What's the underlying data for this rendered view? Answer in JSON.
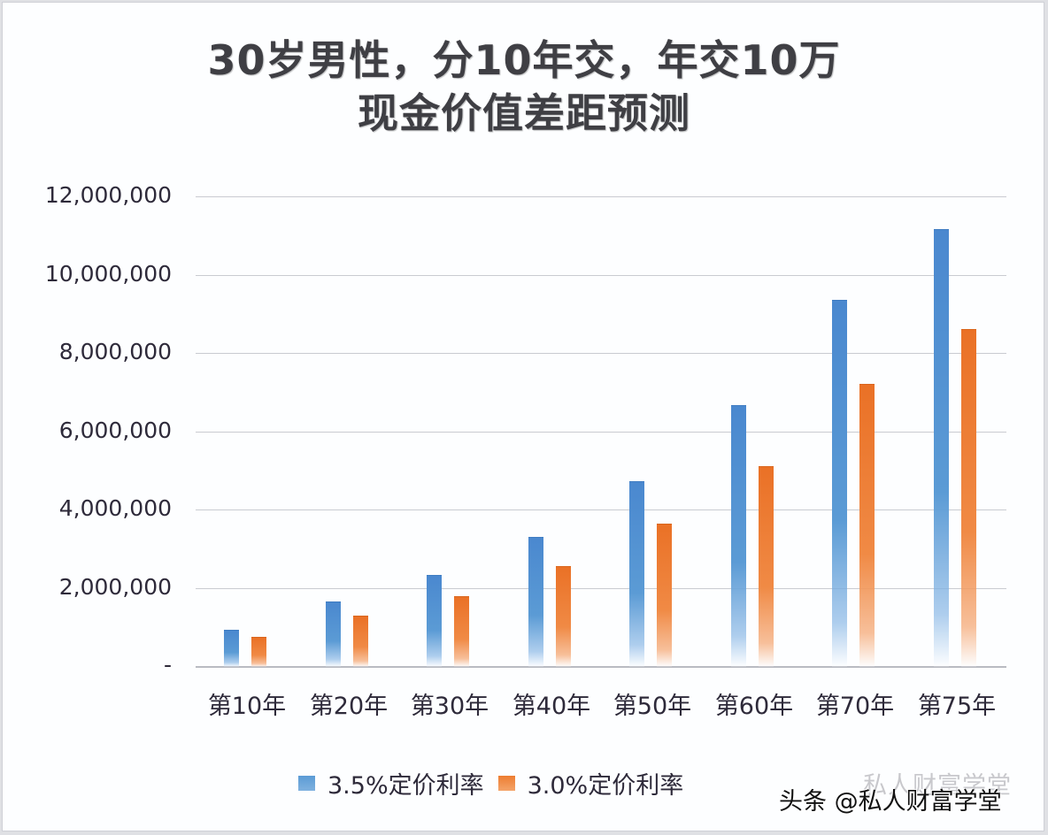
{
  "chart_data": {
    "type": "bar",
    "title": "30岁男性，分10年交，年交10万\n现金价值差距预测",
    "title_lines": [
      "30岁男性，分10年交，年交10万",
      "现金价值差距预测"
    ],
    "xlabel": "",
    "ylabel": "",
    "ylim": [
      0,
      12000000
    ],
    "yticks": [
      0,
      2000000,
      4000000,
      6000000,
      8000000,
      10000000,
      12000000
    ],
    "ytick_labels": [
      "-",
      "2,000,000",
      "4,000,000",
      "6,000,000",
      "8,000,000",
      "10,000,000",
      "12,000,000"
    ],
    "grid": true,
    "legend_position": "bottom",
    "categories": [
      "第10年",
      "第20年",
      "第30年",
      "第40年",
      "第50年",
      "第60年",
      "第70年",
      "第75年"
    ],
    "series": [
      {
        "name": "3.5%定价利率",
        "color": "#5b9bd5",
        "values": [
          930000,
          1650000,
          2330000,
          3300000,
          4720000,
          6660000,
          9350000,
          11170000
        ]
      },
      {
        "name": "3.0%定价利率",
        "color": "#ed7d31",
        "values": [
          750000,
          1290000,
          1780000,
          2550000,
          3630000,
          5100000,
          7220000,
          8600000
        ]
      }
    ]
  },
  "watermark": {
    "main": "头条 @私人财富学堂",
    "faint": "私人财富学堂"
  }
}
